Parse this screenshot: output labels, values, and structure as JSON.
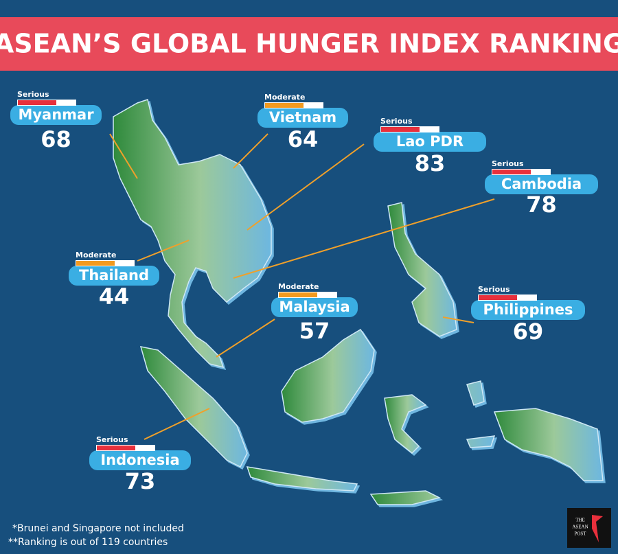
{
  "title": "ASEAN’S GLOBAL HUNGER INDEX RANKING",
  "countries": [
    {
      "name": "Myanmar",
      "status": "Serious",
      "rank": 68,
      "color": "#e8303c"
    },
    {
      "name": "Vietnam",
      "status": "Moderate",
      "rank": 64,
      "color": "#f29a1f"
    },
    {
      "name": "Lao PDR",
      "status": "Serious",
      "rank": 83,
      "color": "#e8303c"
    },
    {
      "name": "Cambodia",
      "status": "Serious",
      "rank": 78,
      "color": "#e8303c"
    },
    {
      "name": "Thailand",
      "status": "Moderate",
      "rank": 44,
      "color": "#f29a1f"
    },
    {
      "name": "Malaysia",
      "status": "Moderate",
      "rank": 57,
      "color": "#f29a1f"
    },
    {
      "name": "Philippines",
      "status": "Serious",
      "rank": 69,
      "color": "#e8303c"
    },
    {
      "name": "Indonesia",
      "status": "Serious",
      "rank": 73,
      "color": "#e8303c"
    }
  ],
  "footnotes": [
    "*Brunei and Singapore not included",
    "**Ranking is out of 119 countries"
  ],
  "logo": [
    "THE",
    "ASEAN",
    "POST"
  ]
}
